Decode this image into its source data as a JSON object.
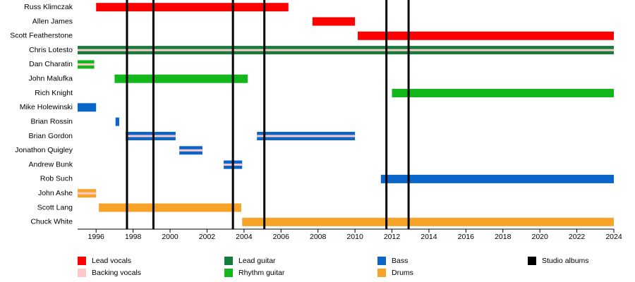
{
  "chart_data": {
    "type": "timeline",
    "xlim": [
      1995,
      2024
    ],
    "xticks": [
      1996,
      1998,
      2000,
      2002,
      2004,
      2006,
      2008,
      2010,
      2012,
      2014,
      2016,
      2018,
      2020,
      2022,
      2024
    ],
    "roles": [
      {
        "name": "Lead vocals",
        "color": "#ff0000"
      },
      {
        "name": "Backing vocals",
        "color": "#ffc8c8"
      },
      {
        "name": "Lead guitar",
        "color": "#157c3b"
      },
      {
        "name": "Rhythm guitar",
        "color": "#13b61b"
      },
      {
        "name": "Bass",
        "color": "#0a66c8"
      },
      {
        "name": "Drums",
        "color": "#f7a32a"
      }
    ],
    "albums": {
      "name": "Studio albums",
      "color": "#000000",
      "years": [
        1997.67,
        1999.1,
        2003.4,
        2005.1,
        2011.7,
        2012.9
      ]
    },
    "rows": [
      {
        "name": "Russ Klimczak",
        "bars": [
          {
            "start": 1996,
            "end": 2006.4,
            "role": 0,
            "backing": false
          }
        ]
      },
      {
        "name": "Allen James",
        "bars": [
          {
            "start": 2007.7,
            "end": 2010,
            "role": 0,
            "backing": false
          }
        ]
      },
      {
        "name": "Scott Featherstone",
        "bars": [
          {
            "start": 2010.15,
            "end": 2024,
            "role": 0,
            "backing": false
          }
        ]
      },
      {
        "name": "Chris Lotesto",
        "bars": [
          {
            "start": 1995,
            "end": 2024,
            "role": 2,
            "backing": true
          }
        ]
      },
      {
        "name": "Dan Charatin",
        "bars": [
          {
            "start": 1995,
            "end": 1995.9,
            "role": 3,
            "backing": true
          }
        ]
      },
      {
        "name": "John Malufka",
        "bars": [
          {
            "start": 1997,
            "end": 2004.2,
            "role": 3,
            "backing": false
          }
        ]
      },
      {
        "name": "Rich Knight",
        "bars": [
          {
            "start": 2012,
            "end": 2024,
            "role": 3,
            "backing": false
          }
        ]
      },
      {
        "name": "Mike Holewinski",
        "bars": [
          {
            "start": 1995,
            "end": 1996,
            "role": 4,
            "backing": false
          }
        ]
      },
      {
        "name": "Brian Rossin",
        "bars": [
          {
            "start": 1997.05,
            "end": 1997.25,
            "role": 4,
            "backing": false
          }
        ]
      },
      {
        "name": "Brian Gordon",
        "bars": [
          {
            "start": 1997.6,
            "end": 2000.3,
            "role": 4,
            "backing": true
          },
          {
            "start": 2004.7,
            "end": 2010,
            "role": 4,
            "backing": true
          }
        ]
      },
      {
        "name": "Jonathon Quigley",
        "bars": [
          {
            "start": 2000.5,
            "end": 2001.75,
            "role": 4,
            "backing": true
          }
        ]
      },
      {
        "name": "Andrew Bunk",
        "bars": [
          {
            "start": 2002.9,
            "end": 2003.9,
            "role": 4,
            "backing": true
          }
        ]
      },
      {
        "name": "Rob Such",
        "bars": [
          {
            "start": 2011.4,
            "end": 2024,
            "role": 4,
            "backing": false
          }
        ]
      },
      {
        "name": "John Ashe",
        "bars": [
          {
            "start": 1995,
            "end": 1996,
            "role": 5,
            "backing": true
          }
        ]
      },
      {
        "name": "Scott Lang",
        "bars": [
          {
            "start": 1996.15,
            "end": 2003.85,
            "role": 5,
            "backing": false
          }
        ]
      },
      {
        "name": "Chuck White",
        "bars": [
          {
            "start": 2003.9,
            "end": 2024,
            "role": 5,
            "backing": false
          }
        ]
      }
    ]
  }
}
